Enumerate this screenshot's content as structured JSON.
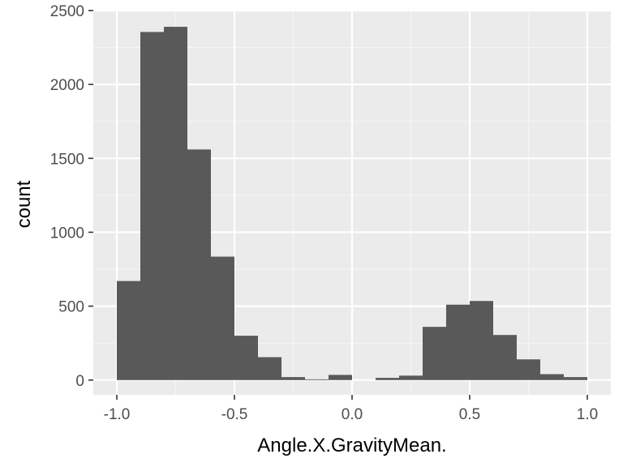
{
  "chart_data": {
    "type": "bar",
    "xlabel": "Angle.X.GravityMean.",
    "ylabel": "count",
    "xlim": [
      -1.1,
      1.1
    ],
    "ylim": [
      -100,
      2500
    ],
    "bin_width": 0.1,
    "bins": [
      {
        "x0": -1.0,
        "x1": -0.9,
        "count": 670
      },
      {
        "x0": -0.9,
        "x1": -0.8,
        "count": 2355
      },
      {
        "x0": -0.8,
        "x1": -0.7,
        "count": 2390
      },
      {
        "x0": -0.7,
        "x1": -0.6,
        "count": 1560
      },
      {
        "x0": -0.6,
        "x1": -0.5,
        "count": 835
      },
      {
        "x0": -0.5,
        "x1": -0.4,
        "count": 300
      },
      {
        "x0": -0.4,
        "x1": -0.3,
        "count": 155
      },
      {
        "x0": -0.3,
        "x1": -0.2,
        "count": 20
      },
      {
        "x0": -0.2,
        "x1": -0.1,
        "count": 5
      },
      {
        "x0": -0.1,
        "x1": 0.0,
        "count": 35
      },
      {
        "x0": 0.0,
        "x1": 0.1,
        "count": 0
      },
      {
        "x0": 0.1,
        "x1": 0.2,
        "count": 15
      },
      {
        "x0": 0.2,
        "x1": 0.3,
        "count": 30
      },
      {
        "x0": 0.3,
        "x1": 0.4,
        "count": 360
      },
      {
        "x0": 0.4,
        "x1": 0.5,
        "count": 510
      },
      {
        "x0": 0.5,
        "x1": 0.6,
        "count": 535
      },
      {
        "x0": 0.6,
        "x1": 0.7,
        "count": 305
      },
      {
        "x0": 0.7,
        "x1": 0.8,
        "count": 140
      },
      {
        "x0": 0.8,
        "x1": 0.9,
        "count": 40
      },
      {
        "x0": 0.9,
        "x1": 1.0,
        "count": 20
      }
    ],
    "x_ticks": [
      {
        "value": -1.0,
        "label": "-1.0"
      },
      {
        "value": -0.5,
        "label": "-0.5"
      },
      {
        "value": 0.0,
        "label": "0.0"
      },
      {
        "value": 0.5,
        "label": "0.5"
      },
      {
        "value": 1.0,
        "label": "1.0"
      }
    ],
    "y_ticks": [
      {
        "value": 0,
        "label": "0"
      },
      {
        "value": 500,
        "label": "500"
      },
      {
        "value": 1000,
        "label": "1000"
      },
      {
        "value": 1500,
        "label": "1500"
      },
      {
        "value": 2000,
        "label": "2000"
      },
      {
        "value": 2500,
        "label": "2500"
      }
    ],
    "grid": true,
    "colors": {
      "panel_background": "#ebebeb",
      "grid_major": "#ffffff",
      "grid_minor": "#f5f5f5",
      "bar_fill": "#595959",
      "tick_color": "#333333"
    }
  }
}
